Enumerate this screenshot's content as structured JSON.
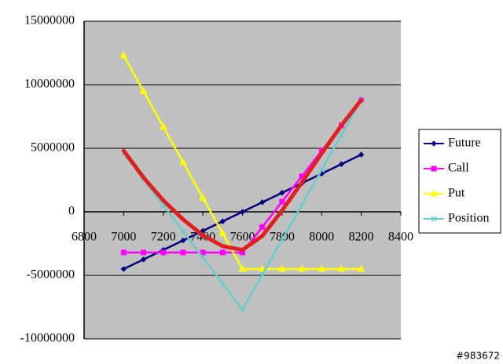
{
  "chart_data": {
    "type": "line",
    "x": [
      7000,
      7100,
      7200,
      7300,
      7400,
      7500,
      7600,
      7700,
      7800,
      7900,
      8000,
      8100,
      8200
    ],
    "series": [
      {
        "name": "Future",
        "color": "#000080",
        "marker": "diamond",
        "values": [
          -4500000,
          -3750000,
          -3000000,
          -2250000,
          -1500000,
          -750000,
          0,
          750000,
          1500000,
          2250000,
          3000000,
          3750000,
          4500000
        ]
      },
      {
        "name": "Call",
        "color": "#ff00ff",
        "marker": "square",
        "values": [
          -3200000,
          -3200000,
          -3200000,
          -3200000,
          -3200000,
          -3200000,
          -3200000,
          -1200000,
          800000,
          2800000,
          4800000,
          6800000,
          8800000
        ]
      },
      {
        "name": "Put",
        "color": "#ffff00",
        "marker": "triangle",
        "values": [
          12300000,
          9500000,
          6700000,
          3900000,
          1100000,
          -1700000,
          -4500000,
          -4500000,
          -4500000,
          -4500000,
          -4500000,
          -4500000,
          -4500000
        ]
      },
      {
        "name": "Position",
        "color": "#66cccc",
        "marker": "x",
        "values": [
          4600000,
          2550000,
          500000,
          -1550000,
          -3600000,
          -5650000,
          -7700000,
          -4950000,
          -2200000,
          550000,
          3300000,
          6050000,
          8800000
        ]
      },
      {
        "color": "#e02020",
        "values": [
          4800000,
          2700000,
          900000,
          -600000,
          -1850000,
          -2700000,
          -3000000,
          -1900000,
          100000,
          2300000,
          4600000,
          6800000,
          8800000
        ]
      }
    ],
    "xlim": [
      6800,
      8400
    ],
    "xticks": [
      6800,
      7000,
      7200,
      7400,
      7600,
      7800,
      8000,
      8200,
      8400
    ],
    "ylim": [
      -10000000,
      15000000
    ],
    "yticks": [
      -10000000,
      -5000000,
      0,
      5000000,
      10000000,
      15000000
    ],
    "grid": true,
    "legend": "right",
    "plot_background": "#c0c0c0",
    "watermark": "#983672"
  }
}
